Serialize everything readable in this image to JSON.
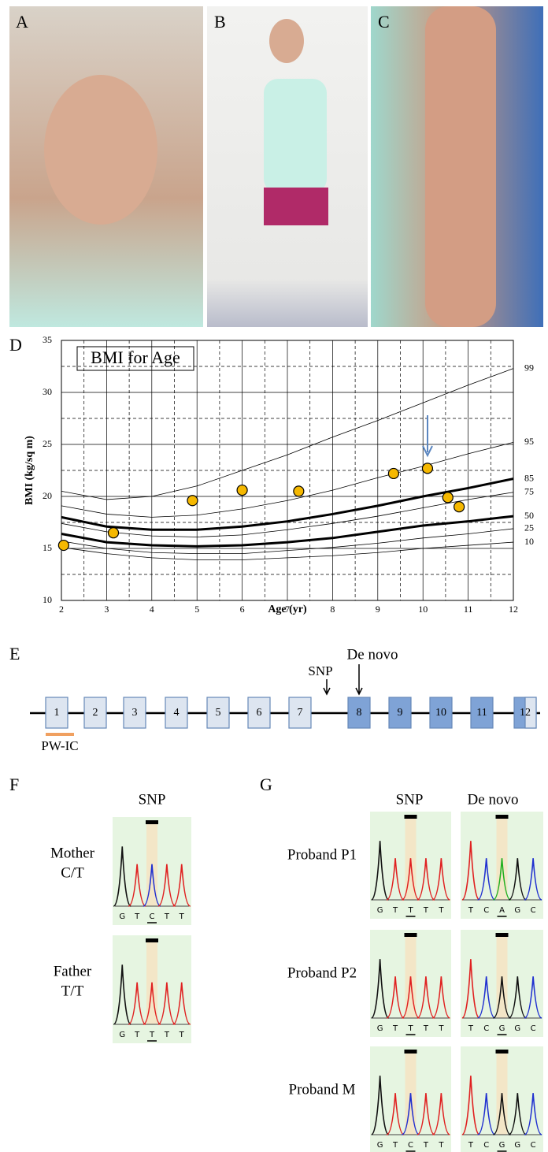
{
  "panel_labels": [
    "A",
    "B",
    "C",
    "D",
    "E",
    "F",
    "G"
  ],
  "chart_data": {
    "type": "line",
    "title": "BMI for Age",
    "x_label": "Age (yr)",
    "y_label": "BMI (kg/sq m)",
    "xlim": [
      2,
      12
    ],
    "xticks": [
      2,
      3,
      4,
      5,
      6,
      7,
      8,
      9,
      10,
      11,
      12
    ],
    "ylim": [
      10,
      35
    ],
    "yticks": [
      10,
      15,
      20,
      25,
      30,
      35
    ],
    "grid": true,
    "x": [
      2,
      3,
      4,
      5,
      6,
      7,
      8,
      9,
      10,
      11,
      12
    ],
    "series": [
      {
        "name": "99",
        "color": "#000000",
        "line_width": 0.8,
        "values": [
          20.5,
          19.7,
          20.0,
          21.0,
          22.5,
          24.0,
          25.7,
          27.3,
          29.0,
          30.7,
          32.3
        ]
      },
      {
        "name": "95",
        "color": "#000000",
        "line_width": 0.8,
        "values": [
          19.1,
          18.3,
          18.0,
          18.2,
          18.8,
          19.6,
          20.6,
          21.8,
          22.9,
          24.1,
          25.2
        ]
      },
      {
        "name": "85",
        "color": "#000000",
        "line_width": 3,
        "values": [
          18.0,
          17.1,
          16.8,
          16.8,
          17.1,
          17.6,
          18.3,
          19.1,
          20.0,
          20.8,
          21.7
        ]
      },
      {
        "name": "75",
        "color": "#000000",
        "line_width": 0.8,
        "values": [
          17.4,
          16.6,
          16.2,
          16.1,
          16.3,
          16.8,
          17.4,
          18.1,
          18.9,
          19.7,
          20.4
        ]
      },
      {
        "name": "50",
        "color": "#000000",
        "line_width": 3,
        "values": [
          16.4,
          15.6,
          15.3,
          15.2,
          15.3,
          15.6,
          16.0,
          16.6,
          17.2,
          17.6,
          18.1
        ]
      },
      {
        "name": "25",
        "color": "#000000",
        "line_width": 0.8,
        "values": [
          15.7,
          15.0,
          14.6,
          14.5,
          14.5,
          14.8,
          15.1,
          15.5,
          16.0,
          16.4,
          16.9
        ]
      },
      {
        "name": "10",
        "color": "#000000",
        "line_width": 0.8,
        "values": [
          15.1,
          14.5,
          14.1,
          13.9,
          13.9,
          14.1,
          14.3,
          14.6,
          15.0,
          15.3,
          15.6
        ]
      }
    ],
    "points": {
      "type": "scatter",
      "color": "#f5b800",
      "x": [
        2.05,
        3.15,
        4.9,
        6.0,
        7.25,
        9.35,
        10.1,
        10.55,
        10.8
      ],
      "y": [
        15.3,
        16.5,
        19.6,
        20.6,
        20.5,
        22.2,
        22.7,
        19.9,
        19.0
      ]
    }
  },
  "gene_diagram": {
    "exons": [
      "1",
      "2",
      "3",
      "4",
      "5",
      "6",
      "7",
      "8",
      "9",
      "10",
      "11",
      "12"
    ],
    "snp_label": "SNP",
    "de_novo_label": "De novo",
    "region_label": "PW-IC"
  },
  "sequencing": {
    "F": {
      "header": "SNP",
      "rows": [
        {
          "label": "Mother",
          "genotype": "C/T",
          "bases": [
            "G",
            "T",
            "C",
            "T",
            "T"
          ]
        },
        {
          "label": "Father",
          "genotype": "T/T",
          "bases": [
            "G",
            "T",
            "T",
            "T",
            "T"
          ]
        }
      ]
    },
    "G": {
      "headers": [
        "SNP",
        "De novo"
      ],
      "rows": [
        {
          "label": "Proband P1",
          "snp_bases": [
            "G",
            "T",
            "T",
            "T",
            "T"
          ],
          "de_novo_bases": [
            "T",
            "C",
            "A",
            "G",
            "C"
          ]
        },
        {
          "label": "Proband P2",
          "snp_bases": [
            "G",
            "T",
            "T",
            "T",
            "T"
          ],
          "de_novo_bases": [
            "T",
            "C",
            "G",
            "G",
            "C"
          ]
        },
        {
          "label": "Proband M",
          "snp_bases": [
            "G",
            "T",
            "C",
            "T",
            "T"
          ],
          "de_novo_bases": [
            "T",
            "C",
            "G",
            "G",
            "C"
          ]
        }
      ]
    }
  }
}
